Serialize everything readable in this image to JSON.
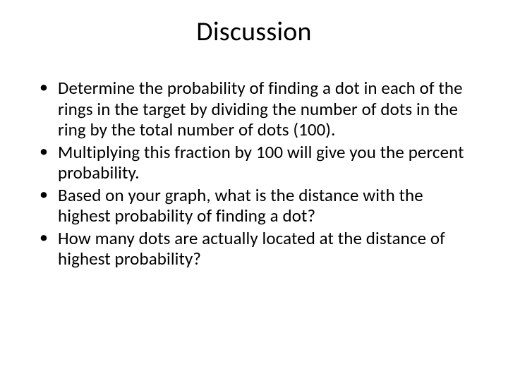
{
  "slide": {
    "title": "Discussion",
    "bullets": [
      "Determine the probability of finding a dot in each of the rings in the target by dividing the number of dots in the ring by the total number of dots (100).",
      "Multiplying this fraction by 100 will give you the percent probability.",
      "Based on your graph, what is the distance with the highest probability of finding a dot?",
      "How many dots are actually located at the distance of highest probability?"
    ],
    "background_color": "#ffffff",
    "text_color": "#000000",
    "title_fontsize": 38,
    "body_fontsize": 25,
    "font_family": "Calibri"
  }
}
